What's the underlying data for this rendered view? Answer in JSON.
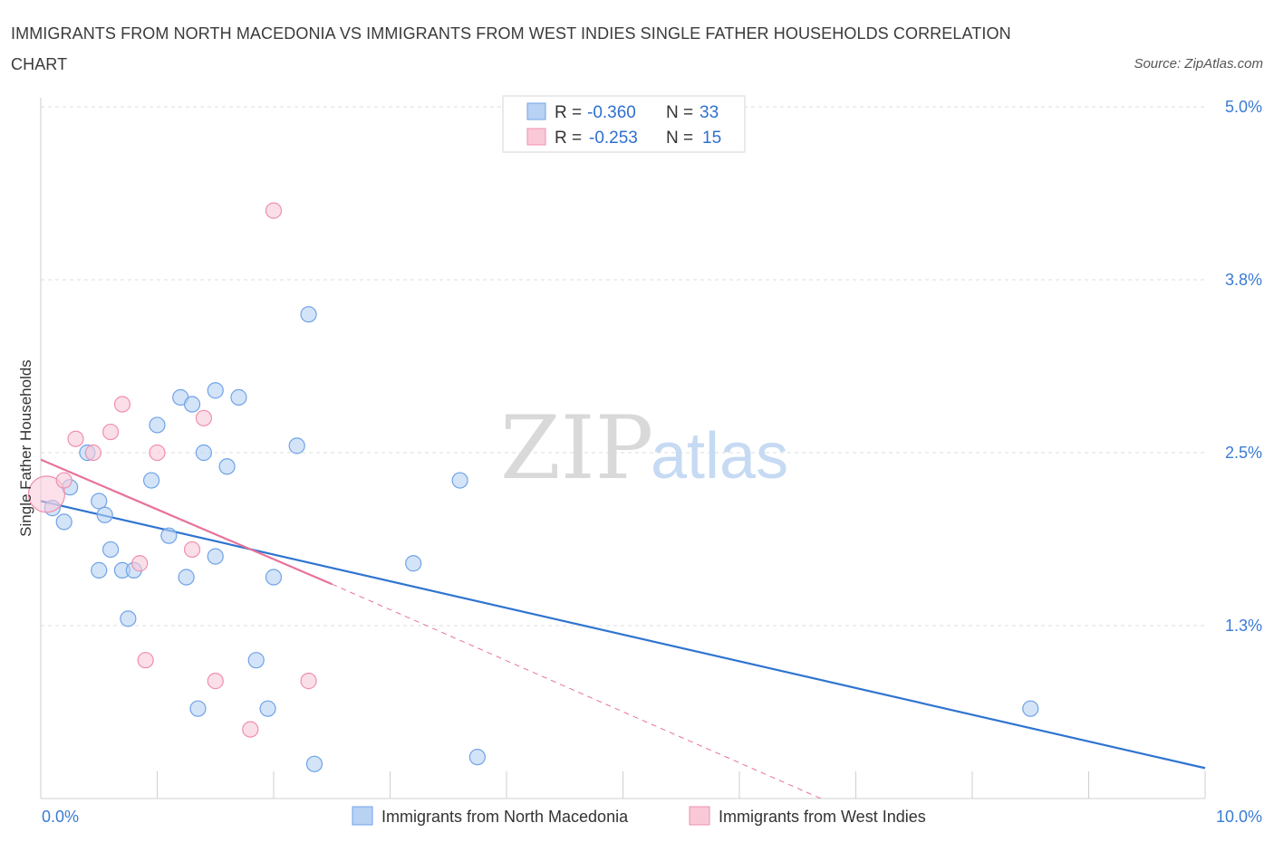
{
  "title": "IMMIGRANTS FROM NORTH MACEDONIA VS IMMIGRANTS FROM WEST INDIES SINGLE FATHER HOUSEHOLDS CORRELATION CHART",
  "source": "Source: ZipAtlas.com",
  "watermark": {
    "zip": "ZIP",
    "atlas": "atlas"
  },
  "legend": [
    {
      "r_label": "R =",
      "r_value": "-0.360",
      "n_label": "N =",
      "n_value": "33"
    },
    {
      "r_label": "R =",
      "r_value": "-0.253",
      "n_label": "N =",
      "n_value": "15"
    }
  ],
  "chart_data": {
    "type": "scatter",
    "title": "IMMIGRANTS FROM NORTH MACEDONIA VS IMMIGRANTS FROM WEST INDIES SINGLE FATHER HOUSEHOLDS CORRELATION CHART",
    "xlabel": "",
    "ylabel": "Single Father Households",
    "xlim": [
      0,
      10
    ],
    "ylim": [
      0,
      5
    ],
    "x_tick_labels": [
      "0.0%",
      "10.0%"
    ],
    "y_ticks": [
      1.25,
      2.5,
      3.75,
      5.0
    ],
    "y_tick_labels": [
      "1.3%",
      "2.5%",
      "3.8%",
      "5.0%"
    ],
    "series": [
      {
        "name": "Immigrants from North Macedonia",
        "color": "#6fa3e8",
        "fill": "#b8d2f4",
        "line_color": "#2f74d0",
        "points": [
          [
            0.1,
            2.1
          ],
          [
            0.2,
            2.0
          ],
          [
            0.25,
            2.25
          ],
          [
            0.4,
            2.5
          ],
          [
            0.6,
            1.8
          ],
          [
            0.5,
            2.15
          ],
          [
            0.55,
            2.05
          ],
          [
            0.5,
            1.65
          ],
          [
            0.7,
            1.65
          ],
          [
            0.8,
            1.65
          ],
          [
            0.75,
            1.3
          ],
          [
            0.95,
            2.3
          ],
          [
            1.0,
            2.7
          ],
          [
            1.1,
            1.9
          ],
          [
            1.2,
            2.9
          ],
          [
            1.3,
            2.85
          ],
          [
            1.25,
            1.6
          ],
          [
            1.4,
            2.5
          ],
          [
            1.35,
            0.65
          ],
          [
            1.5,
            2.95
          ],
          [
            1.7,
            2.9
          ],
          [
            1.6,
            2.4
          ],
          [
            1.5,
            1.75
          ],
          [
            1.85,
            1.0
          ],
          [
            1.95,
            0.65
          ],
          [
            2.0,
            1.6
          ],
          [
            2.2,
            2.55
          ],
          [
            2.3,
            3.5
          ],
          [
            2.35,
            0.25
          ],
          [
            3.2,
            1.7
          ],
          [
            3.6,
            2.3
          ],
          [
            3.75,
            0.3
          ],
          [
            8.5,
            0.65
          ]
        ],
        "trend": {
          "x": [
            0,
            10
          ],
          "y": [
            2.15,
            0.22
          ]
        }
      },
      {
        "name": "Immigrants from West Indies",
        "color": "#f08fae",
        "fill": "#f9c9d8",
        "line_color": "#e8729a",
        "points": [
          [
            0.05,
            2.2
          ],
          [
            0.2,
            2.3
          ],
          [
            0.3,
            2.6
          ],
          [
            0.45,
            2.5
          ],
          [
            0.6,
            2.65
          ],
          [
            0.7,
            2.85
          ],
          [
            0.85,
            1.7
          ],
          [
            0.9,
            1.0
          ],
          [
            1.0,
            2.5
          ],
          [
            1.3,
            1.8
          ],
          [
            1.4,
            2.75
          ],
          [
            1.5,
            0.85
          ],
          [
            1.8,
            0.5
          ],
          [
            2.0,
            4.25
          ],
          [
            2.3,
            0.85
          ]
        ],
        "trend": {
          "x": [
            0,
            2.5
          ],
          "y": [
            2.45,
            1.55
          ]
        },
        "trend_dashed": {
          "x": [
            2.5,
            6.7
          ],
          "y": [
            1.55,
            0.0
          ]
        }
      }
    ],
    "legend_position": "top-center"
  }
}
